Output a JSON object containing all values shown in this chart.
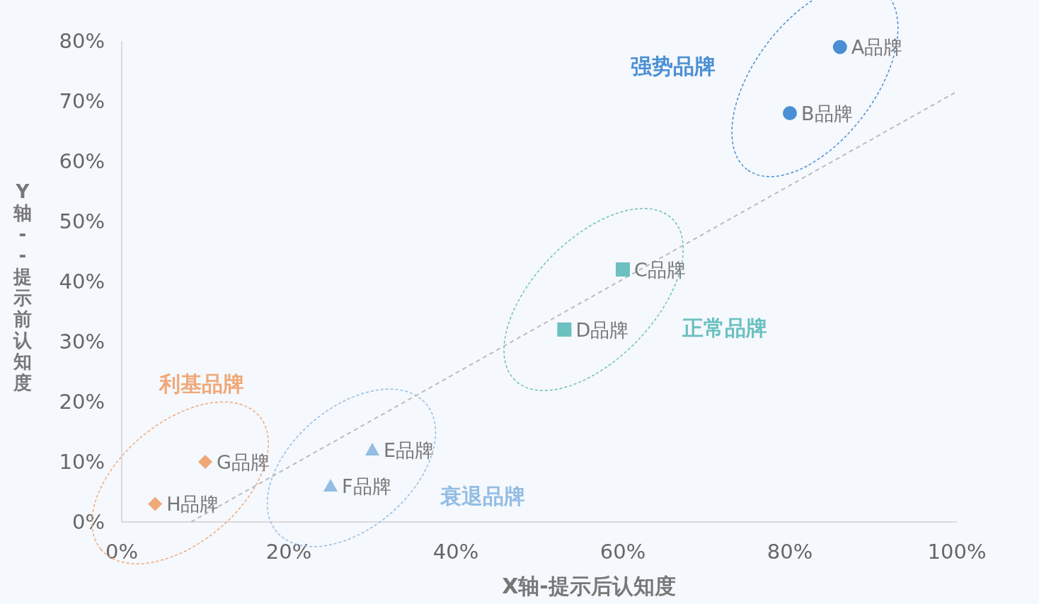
{
  "chart_data": {
    "type": "scatter",
    "xlabel": "X轴-提示后认知度",
    "ylabel": "Y轴--提示前认知度",
    "xlim": [
      0,
      100
    ],
    "ylim": [
      0,
      80
    ],
    "xticks": [
      {
        "value": 0,
        "label": "0%"
      },
      {
        "value": 20,
        "label": "20%"
      },
      {
        "value": 40,
        "label": "40%"
      },
      {
        "value": 60,
        "label": "60%"
      },
      {
        "value": 80,
        "label": "80%"
      },
      {
        "value": 100,
        "label": "100%"
      }
    ],
    "yticks": [
      {
        "value": 0,
        "label": "0%"
      },
      {
        "value": 10,
        "label": "10%"
      },
      {
        "value": 20,
        "label": "20%"
      },
      {
        "value": 30,
        "label": "30%"
      },
      {
        "value": 40,
        "label": "40%"
      },
      {
        "value": 50,
        "label": "50%"
      },
      {
        "value": 60,
        "label": "60%"
      },
      {
        "value": 70,
        "label": "70%"
      },
      {
        "value": 80,
        "label": "80%"
      }
    ],
    "grid": false,
    "series": [
      {
        "color": "#4a8fd4",
        "marker": "circle",
        "x": [
          86,
          80
        ],
        "values": [
          79,
          68
        ]
      },
      {
        "color": "#6cc0c0",
        "marker": "square",
        "x": [
          60,
          53
        ],
        "values": [
          42,
          32
        ]
      },
      {
        "color": "#93bde3",
        "marker": "triangle",
        "x": [
          30,
          25
        ],
        "values": [
          12,
          6
        ]
      },
      {
        "color": "#f0a878",
        "marker": "diamond",
        "x": [
          10,
          4
        ],
        "values": [
          10,
          3
        ]
      },
      {
        "type": "line",
        "color": "#bbbbbb",
        "line_style": "dashed",
        "marker": "none",
        "x": [
          8.3,
          100
        ],
        "values": [
          0,
          71.6
        ]
      }
    ],
    "annotations": [
      {
        "text": "A品牌",
        "x": 86,
        "y": 79
      },
      {
        "text": "B品牌",
        "x": 80,
        "y": 68
      },
      {
        "text": "C品牌",
        "x": 60,
        "y": 42
      },
      {
        "text": "D品牌",
        "x": 53,
        "y": 32
      },
      {
        "text": "E品牌",
        "x": 30,
        "y": 12
      },
      {
        "text": "F品牌",
        "x": 25,
        "y": 6
      },
      {
        "text": "G品牌",
        "x": 10,
        "y": 10
      },
      {
        "text": "H品牌",
        "x": 4,
        "y": 3
      },
      "强势品牌",
      "正常品牌",
      "衰退品牌",
      "利基品牌"
    ]
  }
}
